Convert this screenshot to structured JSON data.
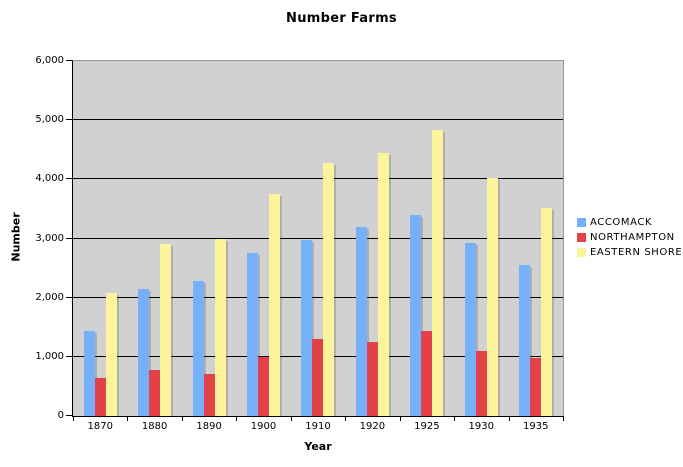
{
  "title": "Number Farms",
  "colors": {
    "accomack": "#76affa",
    "northampton": "#e04248",
    "eastern_shore": "#fcf49d",
    "plot_background": "#d1d1d1",
    "gridline": "#000000",
    "plot_border": "#999999"
  },
  "chart_data": {
    "type": "bar",
    "title": "Number Farms",
    "xlabel": "Year",
    "ylabel": "Number",
    "ylim": [
      0,
      6000
    ],
    "ytick_interval": 1000,
    "ytick_labels": [
      "0",
      "1,000",
      "2,000",
      "3,000",
      "4,000",
      "5,000",
      "6,000"
    ],
    "grid": true,
    "legend_position": "right",
    "categories": [
      "1870",
      "1880",
      "1890",
      "1900",
      "1910",
      "1920",
      "1925",
      "1930",
      "1935"
    ],
    "series": [
      {
        "name": "ACCOMACK",
        "color": "#76affa",
        "values": [
          1445,
          2140,
          2290,
          2760,
          2970,
          3200,
          3400,
          2920,
          2550
        ]
      },
      {
        "name": "NORTHAMPTON",
        "color": "#e04248",
        "values": [
          640,
          770,
          715,
          990,
          1300,
          1255,
          1430,
          1105,
          975
        ]
      },
      {
        "name": "EASTERN SHORE",
        "color": "#fcf49d",
        "values": [
          2085,
          2910,
          3000,
          3750,
          4270,
          4450,
          4830,
          4025,
          3520
        ]
      }
    ]
  }
}
